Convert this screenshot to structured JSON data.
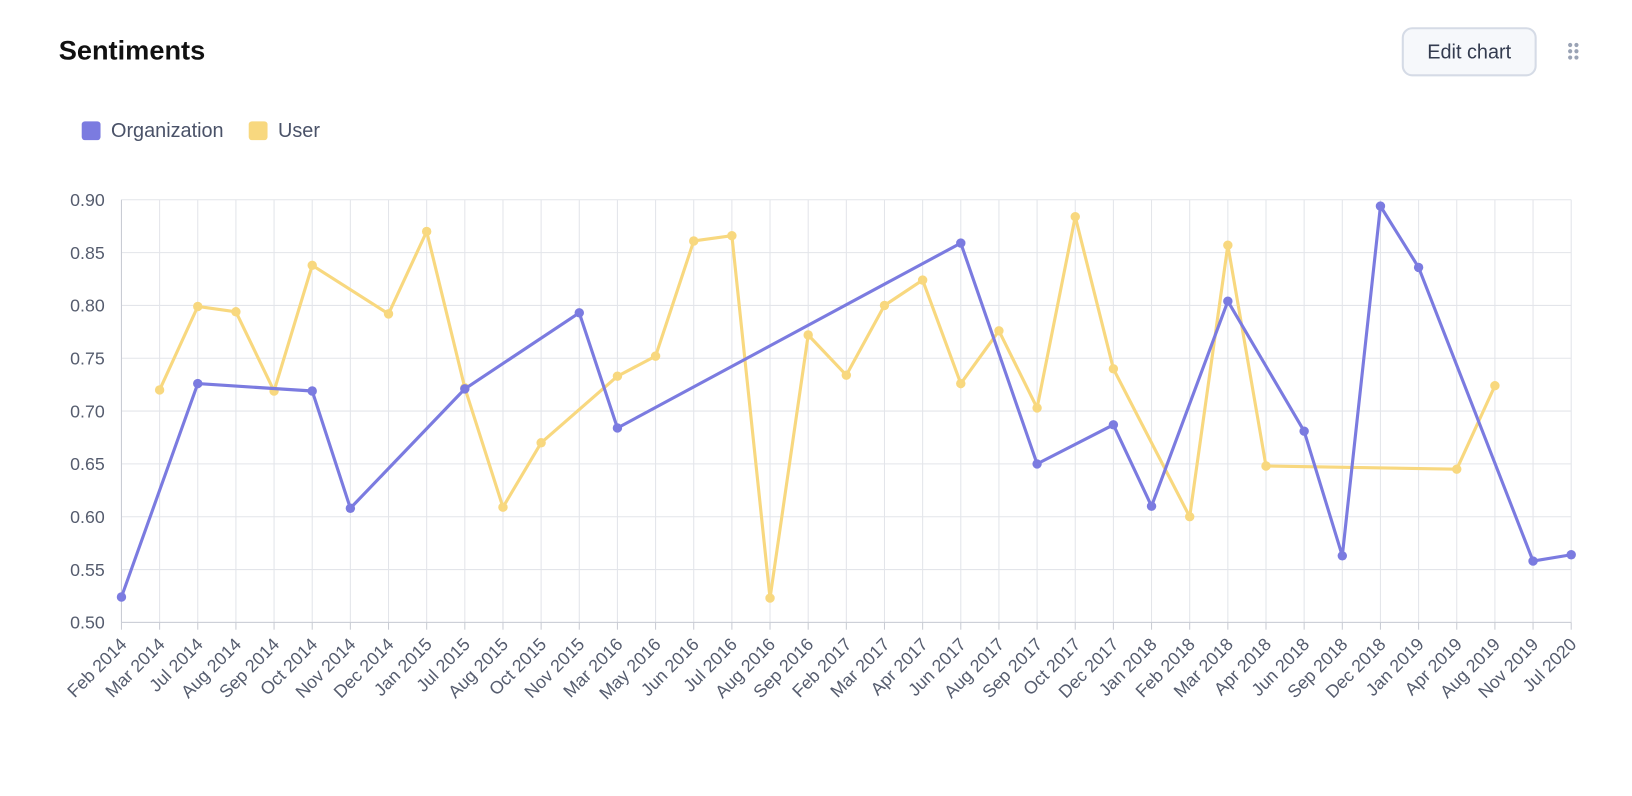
{
  "chart_data": {
    "type": "line",
    "title": "Sentiments",
    "button": "Edit chart",
    "categories": [
      "Feb 2014",
      "Mar 2014",
      "Jul 2014",
      "Aug 2014",
      "Sep 2014",
      "Oct 2014",
      "Nov 2014",
      "Dec 2014",
      "Jan 2015",
      "Jul 2015",
      "Aug 2015",
      "Oct 2015",
      "Nov 2015",
      "Mar 2016",
      "May 2016",
      "Jun 2016",
      "Jul 2016",
      "Aug 2016",
      "Sep 2016",
      "Feb 2017",
      "Mar 2017",
      "Apr 2017",
      "Jun 2017",
      "Aug 2017",
      "Sep 2017",
      "Oct 2017",
      "Dec 2017",
      "Jan 2018",
      "Feb 2018",
      "Mar 2018",
      "Apr 2018",
      "Jun 2018",
      "Sep 2018",
      "Dec 2018",
      "Jan 2019",
      "Apr 2019",
      "Aug 2019",
      "Nov 2019",
      "Jul 2020"
    ],
    "series": [
      {
        "name": "Organization",
        "color": "#7b7be0",
        "values": [
          0.524,
          null,
          0.726,
          null,
          null,
          0.719,
          0.608,
          null,
          null,
          0.721,
          null,
          null,
          0.793,
          0.684,
          null,
          null,
          null,
          null,
          null,
          null,
          null,
          null,
          0.859,
          null,
          0.65,
          null,
          0.687,
          0.61,
          null,
          0.804,
          null,
          0.681,
          0.563,
          0.894,
          0.836,
          null,
          null,
          0.558,
          0.564
        ]
      },
      {
        "name": "User",
        "color": "#f8d87f",
        "values": [
          null,
          0.72,
          0.799,
          0.794,
          0.719,
          0.838,
          null,
          0.792,
          0.87,
          0.722,
          0.609,
          0.67,
          null,
          0.733,
          0.752,
          0.861,
          0.866,
          0.523,
          0.772,
          0.734,
          0.8,
          0.824,
          0.726,
          0.776,
          0.703,
          0.884,
          0.74,
          null,
          0.6,
          0.857,
          0.648,
          null,
          null,
          null,
          null,
          0.645,
          0.724,
          null,
          null
        ]
      }
    ],
    "ylim": [
      0.5,
      0.9
    ],
    "yticks": [
      {
        "value": 0.5,
        "label": "0.50"
      },
      0.55,
      {
        "value": 0.6,
        "label": "0.60"
      },
      0.65,
      {
        "value": 0.7,
        "label": "0.70"
      },
      0.75,
      {
        "value": 0.8,
        "label": "0.80"
      },
      0.85,
      {
        "value": 0.9,
        "label": "0.90"
      }
    ],
    "grid": true,
    "span_gaps": true,
    "legend": "top-left"
  }
}
